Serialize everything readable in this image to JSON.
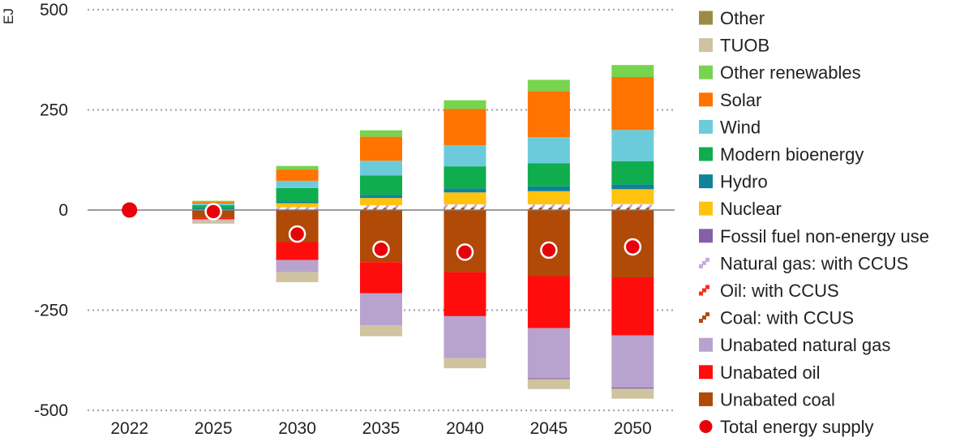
{
  "chart_data": {
    "type": "bar",
    "stacked": true,
    "ylabel": "EJ",
    "ylim": [
      -500,
      500
    ],
    "yticks": [
      500,
      250,
      0,
      -250,
      -500
    ],
    "categories": [
      "2022",
      "2025",
      "2030",
      "2035",
      "2040",
      "2045",
      "2050"
    ],
    "legend_position": "right",
    "series": [
      {
        "name": "Other",
        "color": "#9c8b47",
        "pattern": "solid",
        "values": [
          0,
          0,
          0,
          0,
          0,
          0,
          0
        ]
      },
      {
        "name": "TUOB",
        "color": "#cfc3a0",
        "pattern": "solid",
        "values": [
          0,
          -8,
          -25,
          -27,
          -25,
          -25,
          -25
        ]
      },
      {
        "name": "Other renewables",
        "color": "#77d44f",
        "pattern": "solid",
        "values": [
          0,
          3,
          9,
          16,
          22,
          28,
          30
        ]
      },
      {
        "name": "Solar",
        "color": "#ff7300",
        "pattern": "solid",
        "values": [
          0,
          4,
          28,
          60,
          90,
          115,
          132
        ]
      },
      {
        "name": "Wind",
        "color": "#6ccbdb",
        "pattern": "solid",
        "values": [
          0,
          4,
          18,
          37,
          53,
          65,
          78
        ]
      },
      {
        "name": "Modern bioenergy",
        "color": "#0fad4e",
        "pattern": "solid",
        "values": [
          0,
          8,
          33,
          48,
          55,
          58,
          58
        ]
      },
      {
        "name": "Hydro",
        "color": "#0e8399",
        "pattern": "solid",
        "values": [
          0,
          2,
          5,
          8,
          10,
          12,
          12
        ]
      },
      {
        "name": "Nuclear",
        "color": "#ffc20e",
        "pattern": "solid",
        "values": [
          0,
          2,
          10,
          18,
          30,
          33,
          37
        ]
      },
      {
        "name": "Fossil fuel non-energy use",
        "color": "#8560a8",
        "pattern": "solid",
        "values": [
          0,
          0,
          0,
          0,
          0,
          -2,
          -3
        ]
      },
      {
        "name": "Natural gas: with CCUS",
        "color": "#c9a9e0",
        "pattern": "dash",
        "values": [
          0,
          0,
          5,
          7,
          8,
          8,
          9
        ]
      },
      {
        "name": "Oil: with CCUS",
        "color": "#ff2a1a",
        "pattern": "dash",
        "values": [
          0,
          0,
          0,
          0,
          0,
          0,
          0
        ]
      },
      {
        "name": "Coal: with CCUS",
        "color": "#b04a10",
        "pattern": "dash",
        "values": [
          0,
          0,
          2,
          5,
          6,
          6,
          6
        ]
      },
      {
        "name": "Unabated natural gas",
        "color": "#b8a3cf",
        "pattern": "solid",
        "values": [
          0,
          -3,
          -30,
          -80,
          -105,
          -125,
          -130
        ]
      },
      {
        "name": "Unabated oil",
        "color": "#ff0d0d",
        "pattern": "solid",
        "values": [
          0,
          -3,
          -45,
          -78,
          -110,
          -130,
          -145
        ]
      },
      {
        "name": "Unabated coal",
        "color": "#b04a06",
        "pattern": "solid",
        "values": [
          0,
          -20,
          -80,
          -130,
          -155,
          -165,
          -168
        ]
      },
      {
        "name": "Total energy supply",
        "color": "#e8000b",
        "type": "marker",
        "values": [
          0,
          -4,
          -60,
          -98,
          -105,
          -100,
          -92
        ]
      }
    ]
  }
}
